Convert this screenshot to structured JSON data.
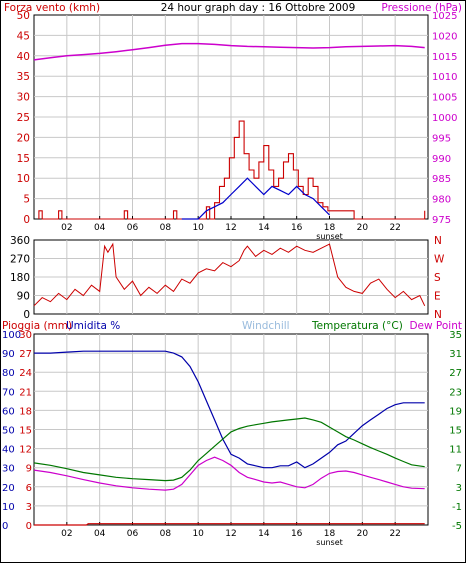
{
  "colors": {
    "wind": "#cc0000",
    "gust": "#cc0000",
    "avg_wind": "#0000cc",
    "pressure": "#cc00cc",
    "direction": "#cc0000",
    "rain": "#cc0000",
    "humidity": "#0000aa",
    "windchill": "#99bbdd",
    "temperature": "#007700",
    "dewpoint": "#cc00cc",
    "grid": "#c8c8c8",
    "frame": "#000000"
  },
  "chart_data": [
    {
      "id": "wind_pressure",
      "type": "line",
      "title": "24 hour graph day : 16 Ottobre 2009",
      "left_label": "Forza vento (kmh)",
      "right_label": "Pressione (hPa)",
      "x_ticks": [
        "02",
        "04",
        "06",
        "08",
        "10",
        "12",
        "14",
        "16",
        "18",
        "20",
        "22"
      ],
      "sunset_label": "sunset",
      "sunset_hour": 18.0,
      "ylim_left": [
        0,
        50
      ],
      "y_ticks_left": [
        0,
        5,
        10,
        15,
        20,
        25,
        30,
        35,
        40,
        45,
        50
      ],
      "ylim_right": [
        975,
        1025
      ],
      "y_ticks_right": [
        975,
        980,
        985,
        990,
        995,
        1000,
        1005,
        1010,
        1015,
        1020,
        1025
      ],
      "pressure": {
        "x": [
          0,
          1,
          2,
          3,
          4,
          5,
          6,
          7,
          8,
          9,
          10,
          11,
          12,
          13,
          14,
          15,
          16,
          17,
          18,
          19,
          20,
          21,
          22,
          23,
          23.8
        ],
        "values": [
          1014,
          1014.5,
          1015,
          1015.3,
          1015.6,
          1016,
          1016.5,
          1017,
          1017.6,
          1018,
          1018,
          1017.8,
          1017.5,
          1017.3,
          1017.2,
          1017.1,
          1017,
          1016.9,
          1017,
          1017.2,
          1017.3,
          1017.4,
          1017.5,
          1017.3,
          1017.0
        ]
      },
      "wind": {
        "x": [
          0.3,
          0.5,
          1.5,
          1.7,
          5.5,
          5.7,
          8.5,
          8.7,
          10.5,
          10.7,
          11.0,
          11.3,
          11.6,
          11.9,
          12.2,
          12.5,
          12.8,
          13.1,
          13.4,
          13.7,
          14.0,
          14.3,
          14.6,
          14.9,
          15.2,
          15.5,
          15.8,
          16.1,
          16.4,
          16.7,
          17.0,
          17.3,
          17.6,
          17.9,
          18.2,
          19.3,
          19.5,
          23.8
        ],
        "values": [
          2,
          0,
          2,
          0,
          2,
          0,
          2,
          0,
          3,
          0,
          4,
          8,
          10,
          15,
          20,
          24,
          16,
          12,
          10,
          14,
          18,
          12,
          8,
          10,
          14,
          16,
          12,
          8,
          6,
          10,
          8,
          4,
          3,
          2,
          2,
          2,
          0,
          2
        ]
      },
      "avg_wind": {
        "x": [
          9.0,
          10.0,
          10.5,
          11.0,
          11.5,
          12.0,
          12.5,
          13.0,
          13.5,
          14.0,
          14.5,
          15.0,
          15.5,
          16.0,
          16.5,
          17.0,
          17.5,
          18.0
        ],
        "values": [
          0,
          0,
          2,
          3,
          4,
          6,
          8,
          10,
          8,
          6,
          8,
          7,
          6,
          8,
          6,
          5,
          3,
          1
        ]
      }
    },
    {
      "id": "direction",
      "type": "line",
      "ylim_left": [
        0,
        360
      ],
      "y_ticks_left": [
        0,
        90,
        180,
        270,
        360
      ],
      "right_ticks": [
        "N",
        "E",
        "S",
        "W",
        "N"
      ],
      "direction": {
        "x": [
          0,
          0.5,
          1,
          1.5,
          2,
          2.5,
          3,
          3.5,
          4,
          4.3,
          4.5,
          4.8,
          5,
          5.5,
          6,
          6.5,
          7,
          7.5,
          8,
          8.5,
          9,
          9.5,
          10,
          10.5,
          11,
          11.5,
          12,
          12.5,
          12.8,
          13,
          13.5,
          14,
          14.5,
          15,
          15.5,
          16,
          16.5,
          17,
          17.5,
          18,
          18.5,
          19,
          19.5,
          20,
          20.5,
          21,
          21.5,
          22,
          22.5,
          23,
          23.5,
          23.8
        ],
        "values": [
          40,
          80,
          60,
          100,
          70,
          120,
          90,
          140,
          110,
          330,
          300,
          340,
          180,
          120,
          160,
          90,
          130,
          100,
          140,
          110,
          170,
          150,
          200,
          220,
          210,
          250,
          230,
          260,
          310,
          330,
          280,
          310,
          290,
          320,
          300,
          330,
          310,
          300,
          320,
          340,
          180,
          130,
          110,
          100,
          150,
          170,
          120,
          80,
          110,
          70,
          90,
          40
        ]
      }
    },
    {
      "id": "rain_humidity_temp",
      "type": "line",
      "labels": {
        "rain": "Pioggia (mm)",
        "humidity": "Umidita %",
        "windchill": "Windchill",
        "temperature": "Temperatura (°C)",
        "dewpoint": "Dew Point"
      },
      "x_ticks": [
        "02",
        "04",
        "06",
        "08",
        "10",
        "12",
        "14",
        "16",
        "18",
        "20",
        "22"
      ],
      "sunset_label": "sunset",
      "sunset_hour": 18.0,
      "y_ticks_rain": [
        0,
        3,
        6,
        9,
        12,
        15,
        18,
        21,
        24,
        27,
        30
      ],
      "y_ticks_humidity": [
        0,
        10,
        20,
        30,
        40,
        50,
        60,
        70,
        80,
        90,
        100
      ],
      "ylim_temp": [
        -5,
        35
      ],
      "y_ticks_temp": [
        -5,
        -1,
        3,
        7,
        11,
        15,
        19,
        23,
        27,
        31,
        35
      ],
      "rain": {
        "x": [
          0,
          3.2,
          3.3,
          23.8
        ],
        "values": [
          0,
          0,
          0.2,
          0.2
        ]
      },
      "humidity": {
        "x": [
          0,
          1,
          2,
          3,
          4,
          5,
          6,
          7,
          8,
          8.5,
          9,
          9.5,
          10,
          10.5,
          11,
          11.5,
          12,
          12.5,
          13,
          13.5,
          14,
          14.5,
          15,
          15.5,
          16,
          16.5,
          17,
          17.5,
          18,
          18.5,
          19,
          19.5,
          20,
          20.5,
          21,
          21.5,
          22,
          22.5,
          23,
          23.8
        ],
        "values": [
          90,
          90,
          90.5,
          91,
          91,
          91,
          91,
          91,
          91,
          90,
          88,
          83,
          75,
          65,
          55,
          45,
          37,
          35,
          32,
          31,
          30,
          30,
          31,
          31,
          33,
          30,
          32,
          35,
          38,
          42,
          44,
          48,
          52,
          55,
          58,
          61,
          63,
          64,
          64,
          64
        ]
      },
      "temperature": {
        "x": [
          0,
          1,
          2,
          3,
          4,
          5,
          6,
          7,
          8,
          8.5,
          9,
          9.5,
          10,
          10.5,
          11,
          11.5,
          12,
          12.5,
          13,
          13.5,
          14,
          14.5,
          15,
          15.5,
          16,
          16.5,
          17,
          17.5,
          18,
          18.5,
          19,
          19.5,
          20,
          20.5,
          21,
          21.5,
          22,
          22.5,
          23,
          23.8
        ],
        "values": [
          8,
          7.5,
          6.8,
          6,
          5.5,
          5,
          4.7,
          4.5,
          4.3,
          4.4,
          5,
          6.5,
          8.5,
          10,
          11.5,
          13,
          14.5,
          15.2,
          15.7,
          16,
          16.3,
          16.6,
          16.8,
          17,
          17.2,
          17.4,
          17,
          16.5,
          15.5,
          14.5,
          13.5,
          12.8,
          12,
          11.2,
          10.5,
          9.8,
          9,
          8.3,
          7.6,
          7.2
        ]
      },
      "dewpoint": {
        "x": [
          0,
          1,
          2,
          3,
          4,
          5,
          6,
          7,
          8,
          8.5,
          9,
          9.5,
          10,
          10.5,
          11,
          11.5,
          12,
          12.5,
          13,
          13.5,
          14,
          14.5,
          15,
          15.5,
          16,
          16.5,
          17,
          17.5,
          18,
          18.5,
          19,
          19.5,
          20,
          20.5,
          21,
          21.5,
          22,
          22.5,
          23,
          23.8
        ],
        "values": [
          6.5,
          6,
          5.3,
          4.5,
          3.8,
          3.2,
          2.8,
          2.5,
          2.3,
          2.5,
          3.5,
          5.5,
          7.5,
          8.5,
          9.2,
          8.5,
          7.5,
          6,
          5,
          4.5,
          4,
          3.8,
          4,
          3.5,
          3,
          2.8,
          3.5,
          4.8,
          5.8,
          6.2,
          6.3,
          6,
          5.5,
          5,
          4.5,
          4,
          3.5,
          3,
          2.7,
          2.6
        ]
      }
    }
  ]
}
